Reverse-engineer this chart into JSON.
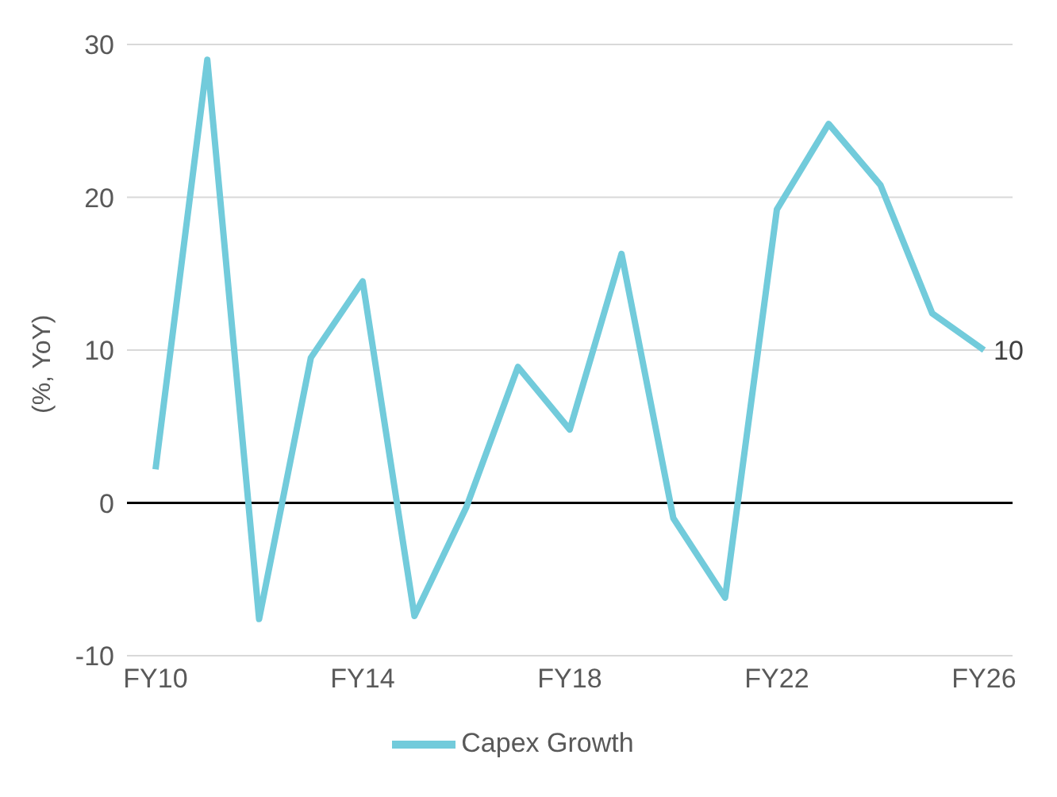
{
  "chart_data": {
    "type": "line",
    "ylabel": "(%, YoY)",
    "categories": [
      "FY10",
      null,
      null,
      null,
      "FY14",
      null,
      null,
      null,
      "FY18",
      null,
      null,
      null,
      "FY22",
      null,
      null,
      null,
      "FY26"
    ],
    "series": [
      {
        "name": "Capex Growth",
        "color": "#72cbdb",
        "values": [
          2.2,
          29,
          -7.6,
          9.5,
          14.5,
          -7.4,
          -0.3,
          8.9,
          4.8,
          16.3,
          -1,
          -6.2,
          19.2,
          24.8,
          20.8,
          12.4,
          10
        ],
        "value_labels": [
          null,
          null,
          null,
          null,
          null,
          null,
          null,
          null,
          null,
          null,
          null,
          null,
          null,
          null,
          null,
          null,
          "10"
        ]
      }
    ],
    "ylim": [
      -10,
      30
    ],
    "yticks": [
      -10,
      0,
      10,
      20,
      30
    ],
    "grid": "y",
    "legend": "bottom",
    "marker": "none",
    "line_style": "solid",
    "ref_lines": [
      {
        "axis": "y",
        "value": 0,
        "color": "#000000"
      }
    ]
  }
}
